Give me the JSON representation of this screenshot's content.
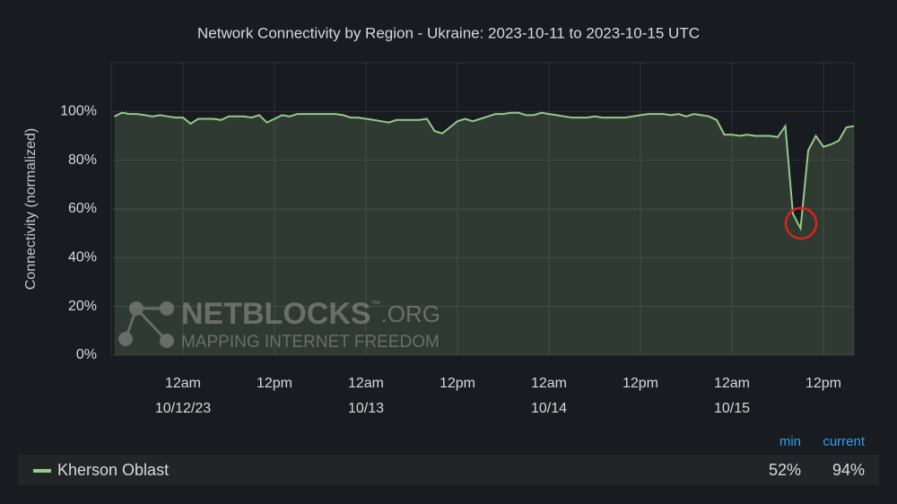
{
  "chart_data": {
    "type": "line",
    "title": "Network Connectivity by Region - Ukraine: 2023-10-11 to 2023-10-15 UTC",
    "y_label": "Connectivity (normalized)",
    "categories": [
      null,
      null,
      null,
      null,
      null,
      null,
      null,
      null,
      null,
      "12am",
      null,
      null,
      null,
      null,
      null,
      null,
      null,
      null,
      null,
      null,
      null,
      "12pm",
      null,
      null,
      null,
      null,
      null,
      null,
      null,
      null,
      null,
      null,
      null,
      "12am",
      null,
      null,
      null,
      null,
      null,
      null,
      null,
      null,
      null,
      null,
      null,
      "12pm",
      null,
      null,
      null,
      null,
      null,
      null,
      null,
      null,
      null,
      null,
      null,
      "12am",
      null,
      null,
      null,
      null,
      null,
      null,
      null,
      null,
      null,
      null,
      null,
      "12pm",
      null,
      null,
      null,
      null,
      null,
      null,
      null,
      null,
      null,
      null,
      null,
      "12am",
      null,
      null,
      null,
      null,
      null,
      null,
      null,
      null,
      null,
      null,
      null,
      "12pm",
      null,
      null,
      null,
      null
    ],
    "dates": [
      null,
      null,
      null,
      null,
      null,
      null,
      null,
      null,
      null,
      "10/12/23",
      null,
      null,
      null,
      null,
      null,
      null,
      null,
      null,
      null,
      null,
      null,
      null,
      null,
      null,
      null,
      null,
      null,
      null,
      null,
      null,
      null,
      null,
      null,
      "10/13",
      null,
      null,
      null,
      null,
      null,
      null,
      null,
      null,
      null,
      null,
      null,
      null,
      null,
      null,
      null,
      null,
      null,
      null,
      null,
      null,
      null,
      null,
      null,
      "10/14",
      null,
      null,
      null,
      null,
      null,
      null,
      null,
      null,
      null,
      null,
      null,
      null,
      null,
      null,
      null,
      null,
      null,
      null,
      null,
      null,
      null,
      null,
      null,
      "10/15",
      null,
      null,
      null,
      null,
      null,
      null,
      null,
      null,
      null,
      null,
      null,
      null,
      null,
      null,
      null,
      null
    ],
    "series": [
      {
        "name": "Kherson Oblast",
        "color": "#96c98a",
        "values": [
          98,
          99.5,
          99,
          99,
          98.5,
          98,
          98.5,
          98,
          97.5,
          97.5,
          95,
          97,
          97,
          97,
          96.5,
          98,
          98,
          98,
          97.5,
          98.5,
          95.5,
          97,
          98.5,
          98,
          99,
          99,
          99,
          99,
          99,
          99,
          98.5,
          97.5,
          97.5,
          97,
          96.5,
          96,
          95.5,
          96.5,
          96.5,
          96.5,
          96.5,
          97,
          92,
          91,
          93.5,
          96,
          97,
          96,
          97,
          98,
          99,
          99,
          99.5,
          99.5,
          98.5,
          98.5,
          99.5,
          99,
          98.5,
          98,
          97.5,
          97.5,
          97.5,
          98,
          97.5,
          97.5,
          97.5,
          97.5,
          98,
          98.5,
          99,
          99,
          99,
          98.5,
          99,
          98,
          99,
          98.5,
          98,
          96.5,
          90.5,
          90.5,
          90,
          90.5,
          90,
          90,
          90,
          89.5,
          94,
          58,
          52,
          84,
          90,
          85.5,
          86.5,
          88,
          93.5,
          94
        ],
        "stats": [
          {
            "name": "min",
            "value": 52,
            "label": "52%"
          },
          {
            "name": "current",
            "value": 94,
            "label": "94%"
          }
        ]
      }
    ],
    "ylim": [
      0,
      120
    ],
    "yticks": [
      {
        "value": 0,
        "label": "0%"
      },
      {
        "value": 20,
        "label": "20%"
      },
      {
        "value": 40,
        "label": "40%"
      },
      {
        "value": 60,
        "label": "60%"
      },
      {
        "value": 80,
        "label": "80%"
      },
      {
        "value": 100,
        "label": "100%"
      }
    ],
    "grid": true,
    "watermark": {
      "name": "NETBLOCKS",
      "tm": "™",
      "domain": ".ORG",
      "tagline": "MAPPING INTERNET FREEDOM"
    }
  }
}
